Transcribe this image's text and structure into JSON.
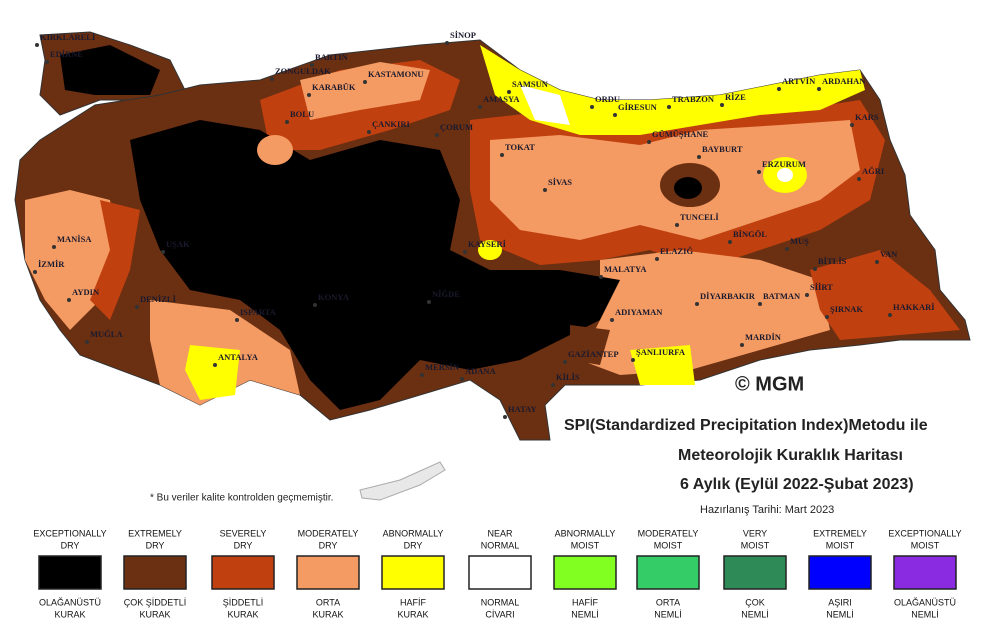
{
  "title": {
    "line1": "SPI(Standardized Precipitation Index)Metodu ile",
    "line2": "Meteorolojik Kuraklık Haritası",
    "line3": "6 Aylık (Eylül 2022-Şubat 2023)",
    "prepared": "Hazırlanış Tarihi: Mart 2023"
  },
  "copyright": "© MGM",
  "note": "* Bu veriler kalite kontrolden geçmemiştir.",
  "cities": [
    "KIRKLARELİ",
    "EDİRNE",
    "SİNOP",
    "BARTIN",
    "ZONGULDAK",
    "KASTAMONU",
    "KARABÜK",
    "SAMSUN",
    "ARTVİN",
    "ARDAHAN",
    "ORDU",
    "GİRESUN",
    "TRABZON",
    "RİZE",
    "BOLU",
    "ÇANKIRI",
    "ÇORUM",
    "AMASYA",
    "TOKAT",
    "GÜMÜŞHANE",
    "BAYBURT",
    "KARS",
    "ERZURUM",
    "AĞRI",
    "SİVAS",
    "UŞAK",
    "MANİSA",
    "İZMİR",
    "AYDIN",
    "KAYSERİ",
    "TUNCELİ",
    "BİNGÖL",
    "MUŞ",
    "ELAZIĞ",
    "VAN",
    "BİTLİS",
    "DENİZLİ",
    "KONYA",
    "NİĞDE",
    "MUĞLA",
    "ISPARTA",
    "MALATYA",
    "DİYARBAKIR",
    "BATMAN",
    "SİİRT",
    "ŞIRNAK",
    "HAKKARİ",
    "ADIYAMAN",
    "MARDİN",
    "ANTALYA",
    "MERSİN",
    "ADANA",
    "GAZİANTEP",
    "ŞANLIURFA",
    "KİLİS",
    "HATAY"
  ],
  "legend": [
    {
      "en": [
        "EXCEPTIONALLY",
        "DRY"
      ],
      "tr": [
        "OLAĞANÜSTÜ",
        "KURAK"
      ],
      "color": "#000000"
    },
    {
      "en": [
        "EXTREMELY",
        "DRY"
      ],
      "tr": [
        "ÇOK ŞİDDETLİ",
        "KURAK"
      ],
      "color": "#6b2f12"
    },
    {
      "en": [
        "SEVERELY",
        "DRY"
      ],
      "tr": [
        "ŞİDDETLİ",
        "KURAK"
      ],
      "color": "#c1400f"
    },
    {
      "en": [
        "MODERATELY",
        "DRY"
      ],
      "tr": [
        "ORTA",
        "KURAK"
      ],
      "color": "#f49a63"
    },
    {
      "en": [
        "ABNORMALLY",
        "DRY"
      ],
      "tr": [
        "HAFİF",
        "KURAK"
      ],
      "color": "#ffff00"
    },
    {
      "en": [
        "NEAR",
        "NORMAL"
      ],
      "tr": [
        "NORMAL",
        "CİVARI"
      ],
      "color": "#ffffff"
    },
    {
      "en": [
        "ABNORMALLY",
        "MOIST"
      ],
      "tr": [
        "HAFİF",
        "NEMLİ"
      ],
      "color": "#80ff20"
    },
    {
      "en": [
        "MODERATELY",
        "MOIST"
      ],
      "tr": [
        "ORTA",
        "NEMLİ"
      ],
      "color": "#33cc66"
    },
    {
      "en": [
        "VERY",
        "MOIST"
      ],
      "tr": [
        "ÇOK",
        "NEMLİ"
      ],
      "color": "#2e8b57"
    },
    {
      "en": [
        "EXTREMELY",
        "MOIST"
      ],
      "tr": [
        "AŞIRI",
        "NEMLİ"
      ],
      "color": "#0000ff"
    },
    {
      "en": [
        "EXCEPTIONALLY",
        "MOIST"
      ],
      "tr": [
        "OLAĞANÜSTÜ",
        "NEMLİ"
      ],
      "color": "#8a2be2"
    }
  ]
}
